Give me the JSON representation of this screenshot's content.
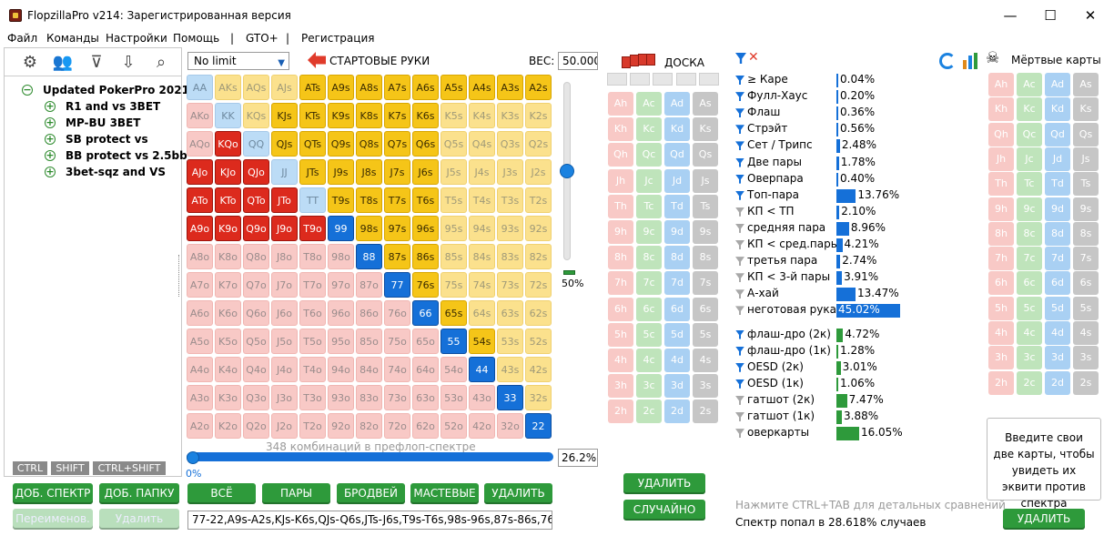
{
  "window": {
    "title": "FlopzillaPro v214: Зарегистрированная версия",
    "min": "—",
    "max": "☐",
    "close": "✕"
  },
  "menu": [
    "Файл",
    "Команды",
    "Настройки",
    "Помощь",
    "|",
    "GTO+",
    "|",
    "Регистрация"
  ],
  "tree": {
    "root": "Updated PokerPro 2021",
    "items": [
      "R1 and vs 3BET",
      "MP-BU 3BET",
      "SB protect vs",
      "BB protect vs 2.5bb",
      "3bet-sqz and VS"
    ]
  },
  "keys": [
    "CTRL",
    "SHIFT",
    "CTRL+SHIFT"
  ],
  "left_buttons": {
    "add_range": "ДОБ. СПЕКТР",
    "add_folder": "ДОБ. ПАПКУ",
    "rename": "Переименов.",
    "delete": "Удалить"
  },
  "range": {
    "select": "No limit",
    "header": "СТАРТОВЫЕ РУКИ",
    "weight_label": "ВЕС:",
    "weight_value": "50.000",
    "slider_value": "50%",
    "combos": "348 комбинаций в префлоп-спектре",
    "percent": "26.2%",
    "progress_zero": "0%",
    "text": "77-22,A9s-A2s,KJs-K6s,QJs-Q6s,JTs-J6s,T9s-T6s,98s-96s,87s-86s,76"
  },
  "grid": [
    [
      "AA",
      "AKs",
      "AQs",
      "AJs",
      "ATs",
      "A9s",
      "A8s",
      "A7s",
      "A6s",
      "A5s",
      "A4s",
      "A3s",
      "A2s"
    ],
    [
      "AKo",
      "KK",
      "KQs",
      "KJs",
      "KTs",
      "K9s",
      "K8s",
      "K7s",
      "K6s",
      "K5s",
      "K4s",
      "K3s",
      "K2s"
    ],
    [
      "AQo",
      "KQo",
      "QQ",
      "QJs",
      "QTs",
      "Q9s",
      "Q8s",
      "Q7s",
      "Q6s",
      "Q5s",
      "Q4s",
      "Q3s",
      "Q2s"
    ],
    [
      "AJo",
      "KJo",
      "QJo",
      "JJ",
      "JTs",
      "J9s",
      "J8s",
      "J7s",
      "J6s",
      "J5s",
      "J4s",
      "J3s",
      "J2s"
    ],
    [
      "ATo",
      "KTo",
      "QTo",
      "JTo",
      "TT",
      "T9s",
      "T8s",
      "T7s",
      "T6s",
      "T5s",
      "T4s",
      "T3s",
      "T2s"
    ],
    [
      "A9o",
      "K9o",
      "Q9o",
      "J9o",
      "T9o",
      "99",
      "98s",
      "97s",
      "96s",
      "95s",
      "94s",
      "93s",
      "92s"
    ],
    [
      "A8o",
      "K8o",
      "Q8o",
      "J8o",
      "T8o",
      "98o",
      "88",
      "87s",
      "86s",
      "85s",
      "84s",
      "83s",
      "82s"
    ],
    [
      "A7o",
      "K7o",
      "Q7o",
      "J7o",
      "T7o",
      "97o",
      "87o",
      "77",
      "76s",
      "75s",
      "74s",
      "73s",
      "72s"
    ],
    [
      "A6o",
      "K6o",
      "Q6o",
      "J6o",
      "T6o",
      "96o",
      "86o",
      "76o",
      "66",
      "65s",
      "64s",
      "63s",
      "62s"
    ],
    [
      "A5o",
      "K5o",
      "Q5o",
      "J5o",
      "T5o",
      "95o",
      "85o",
      "75o",
      "65o",
      "55",
      "54s",
      "53s",
      "52s"
    ],
    [
      "A4o",
      "K4o",
      "Q4o",
      "J4o",
      "T4o",
      "94o",
      "84o",
      "74o",
      "64o",
      "54o",
      "44",
      "43s",
      "42s"
    ],
    [
      "A3o",
      "K3o",
      "Q3o",
      "J3o",
      "T3o",
      "93o",
      "83o",
      "73o",
      "63o",
      "53o",
      "43o",
      "33",
      "32s"
    ],
    [
      "A2o",
      "K2o",
      "Q2o",
      "J2o",
      "T2o",
      "92o",
      "82o",
      "72o",
      "62o",
      "52o",
      "42o",
      "32o",
      "22"
    ]
  ],
  "grid_buttons": [
    "ВСЁ",
    "ПАРЫ",
    "БРОДВЕЙ",
    "МАСТЕВЫЕ",
    "УДАЛИТЬ"
  ],
  "board": {
    "header": "ДОСКА",
    "ranks": [
      "A",
      "K",
      "Q",
      "J",
      "T",
      "9",
      "8",
      "7",
      "6",
      "5",
      "4",
      "3",
      "2"
    ],
    "suits": [
      "h",
      "c",
      "d",
      "s"
    ],
    "delete": "УДАЛИТЬ",
    "random": "СЛУЧАЙНО"
  },
  "stats": [
    {
      "name": "≥ Каре",
      "value": "0.04%",
      "pct": 0.04,
      "filter": "blue",
      "color": "blue"
    },
    {
      "name": "Фулл-Хаус",
      "value": "0.20%",
      "pct": 0.2,
      "filter": "blue",
      "color": "blue"
    },
    {
      "name": "Флаш",
      "value": "0.36%",
      "pct": 0.36,
      "filter": "blue",
      "color": "blue"
    },
    {
      "name": "Стрэйт",
      "value": "0.56%",
      "pct": 0.56,
      "filter": "blue",
      "color": "blue"
    },
    {
      "name": "Сет / Трипс",
      "value": "2.48%",
      "pct": 2.48,
      "filter": "blue",
      "color": "blue"
    },
    {
      "name": "Две пары",
      "value": "1.78%",
      "pct": 1.78,
      "filter": "blue",
      "color": "blue"
    },
    {
      "name": "Оверпара",
      "value": "0.40%",
      "pct": 0.4,
      "filter": "blue",
      "color": "blue"
    },
    {
      "name": "Топ-пара",
      "value": "13.76%",
      "pct": 13.76,
      "filter": "blue",
      "color": "blue"
    },
    {
      "name": "КП < ТП",
      "value": "2.10%",
      "pct": 2.1,
      "filter": "gray",
      "color": "blue"
    },
    {
      "name": "средняя пара",
      "value": "8.96%",
      "pct": 8.96,
      "filter": "gray",
      "color": "blue"
    },
    {
      "name": "КП < сред.пары",
      "value": "4.21%",
      "pct": 4.21,
      "filter": "gray",
      "color": "blue"
    },
    {
      "name": "третья пара",
      "value": "2.74%",
      "pct": 2.74,
      "filter": "gray",
      "color": "blue"
    },
    {
      "name": "КП < 3-й пары",
      "value": "3.91%",
      "pct": 3.91,
      "filter": "gray",
      "color": "blue"
    },
    {
      "name": "А-хай",
      "value": "13.47%",
      "pct": 13.47,
      "filter": "gray",
      "color": "blue"
    },
    {
      "name": "неготовая рука",
      "value": "45.02%",
      "pct": 45.02,
      "filter": "gray",
      "color": "blue"
    },
    {
      "name": "флаш-дро (2к)",
      "value": "4.72%",
      "pct": 4.72,
      "filter": "blue",
      "color": "green"
    },
    {
      "name": "флаш-дро (1к)",
      "value": "1.28%",
      "pct": 1.28,
      "filter": "blue",
      "color": "green"
    },
    {
      "name": "OESD (2к)",
      "value": "3.01%",
      "pct": 3.01,
      "filter": "blue",
      "color": "green"
    },
    {
      "name": "OESD (1к)",
      "value": "1.06%",
      "pct": 1.06,
      "filter": "blue",
      "color": "green"
    },
    {
      "name": "гатшот (2к)",
      "value": "7.47%",
      "pct": 7.47,
      "filter": "gray",
      "color": "green"
    },
    {
      "name": "гатшот (1к)",
      "value": "3.88%",
      "pct": 3.88,
      "filter": "gray",
      "color": "green"
    },
    {
      "name": "оверкарты",
      "value": "16.05%",
      "pct": 16.05,
      "filter": "gray",
      "color": "green"
    }
  ],
  "dead": {
    "header": "Мёртвые карты",
    "hint": "Введите свои две карты, чтобы увидеть их эквити против спектра",
    "delete": "УДАЛИТЬ"
  },
  "footer": {
    "hint": "Нажмите CTRL+TAB для детальных сравнений",
    "result": "Спектр попал в 28.618% случаев"
  }
}
